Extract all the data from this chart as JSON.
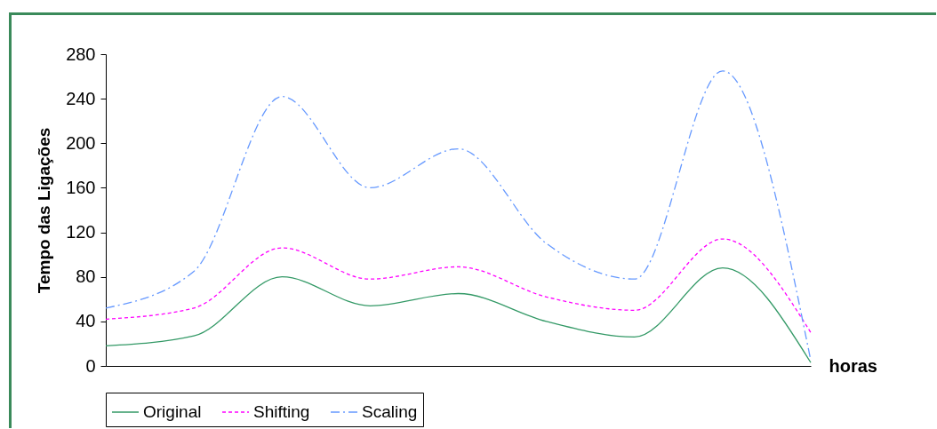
{
  "chart_data": {
    "type": "line",
    "xlabel": "horas",
    "ylabel": "Tempo das Ligações",
    "categories": [
      null,
      null,
      null,
      null,
      null,
      null,
      null,
      null,
      null
    ],
    "series": [
      {
        "name": "Original",
        "color": "#339966",
        "line_style": "solid",
        "values": [
          18,
          27,
          80,
          54,
          65,
          40,
          26,
          88,
          3
        ]
      },
      {
        "name": "Shifting",
        "color": "#ff00ff",
        "line_style": "dotted",
        "values": [
          42,
          52,
          106,
          78,
          89,
          62,
          50,
          114,
          30
        ]
      },
      {
        "name": "Scaling",
        "color": "#6699ff",
        "line_style": "dashed",
        "values": [
          52,
          85,
          242,
          160,
          195,
          110,
          78,
          265,
          5
        ]
      }
    ],
    "ylim": [
      0,
      280
    ],
    "yticks": [
      0,
      40,
      80,
      120,
      160,
      200,
      240,
      280
    ],
    "grid": false,
    "legend": "bottom",
    "marker": "none"
  }
}
